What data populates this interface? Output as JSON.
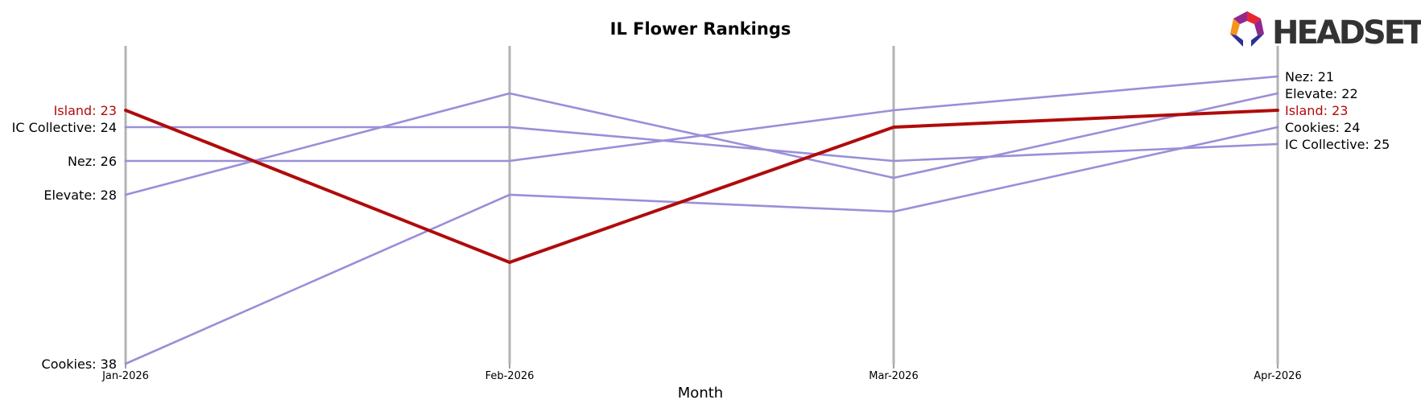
{
  "chart_data": {
    "type": "line",
    "title": "IL Flower Rankings",
    "xlabel": "Month",
    "ylabel": "",
    "categories": [
      "Jan-2026",
      "Feb-2026",
      "Mar-2026",
      "Apr-2026"
    ],
    "y_inverted": true,
    "ylim": [
      20.0,
      38.8
    ],
    "grid": "vertical",
    "highlight_series": "Island",
    "series": [
      {
        "name": "Island",
        "values": [
          23,
          32,
          24,
          23
        ],
        "start_label": "Island: 23",
        "end_label": "Island: 23",
        "color": "#b00b0b",
        "highlight": true
      },
      {
        "name": "IC Collective",
        "values": [
          24,
          24,
          26,
          25
        ],
        "start_label": "IC Collective: 24",
        "end_label": "IC Collective: 25",
        "color": "#9a8fd8"
      },
      {
        "name": "Nez",
        "values": [
          26,
          26,
          23,
          21
        ],
        "start_label": "Nez: 26",
        "end_label": "Nez: 21",
        "color": "#9a8fd8"
      },
      {
        "name": "Elevate",
        "values": [
          28,
          22,
          27,
          22
        ],
        "start_label": "Elevate: 28",
        "end_label": "Elevate: 22",
        "color": "#9a8fd8"
      },
      {
        "name": "Cookies",
        "values": [
          38,
          28,
          29,
          24
        ],
        "start_label": "Cookies: 38",
        "end_label": "Cookies: 24",
        "color": "#9a8fd8"
      }
    ]
  },
  "logo": {
    "text": "HEADSET",
    "colors": [
      "#e8262f",
      "#f7941d",
      "#2e3192",
      "#92278f"
    ]
  }
}
